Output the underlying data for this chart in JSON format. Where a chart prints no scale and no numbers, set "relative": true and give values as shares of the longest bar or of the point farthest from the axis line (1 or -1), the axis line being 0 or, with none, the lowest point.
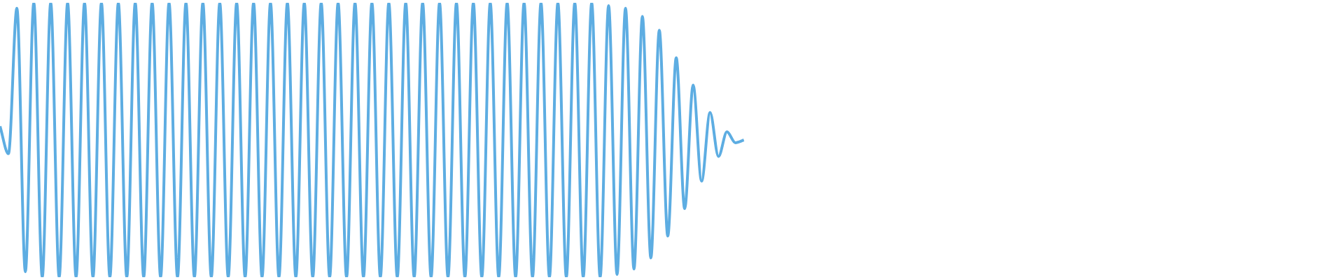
{
  "chart_data": {
    "type": "line",
    "relative": true,
    "marker": "none",
    "line_style": "solid",
    "categories": [
      null,
      null,
      null,
      null,
      null,
      null,
      null,
      null,
      null,
      null,
      null,
      null,
      null,
      null,
      null,
      null,
      null,
      null,
      null,
      null,
      null,
      null,
      null,
      null,
      null,
      null,
      null,
      null,
      null,
      null,
      null,
      null,
      null,
      null,
      null,
      null,
      null,
      null,
      null,
      null,
      null,
      null,
      null,
      null,
      null,
      null,
      null,
      null,
      null,
      null,
      null,
      null,
      null,
      null,
      null,
      null,
      null,
      null,
      null,
      null,
      null,
      null,
      null,
      null,
      null,
      null,
      null,
      null,
      null,
      null,
      null,
      null,
      null,
      null,
      null,
      null,
      null,
      null,
      null,
      null,
      null,
      null,
      null,
      null,
      null,
      null,
      null,
      null,
      null,
      null,
      null,
      null,
      null,
      null,
      null,
      null,
      null,
      null,
      null,
      null,
      null,
      null,
      null,
      null,
      null,
      null,
      null,
      null,
      null,
      null,
      null,
      null,
      null,
      null,
      null,
      null,
      null,
      null,
      null,
      null,
      null,
      null,
      null,
      null,
      null,
      null,
      null,
      null,
      null,
      null,
      null,
      null,
      null,
      null,
      null,
      null,
      null,
      null,
      null,
      null,
      null,
      null,
      null,
      null,
      null,
      null,
      null,
      null,
      null,
      null,
      null,
      null,
      null,
      null,
      null,
      null,
      null,
      null,
      null,
      null
    ],
    "series": [
      {
        "color": "#5dade2",
        "values": [
          0.55,
          0.45,
          0.98,
          0.02,
          1,
          0,
          1,
          0,
          1,
          0,
          1,
          0,
          1,
          0,
          1,
          0,
          1,
          0,
          1,
          0,
          1,
          0,
          1,
          0,
          1,
          0,
          1,
          0,
          1,
          0,
          1,
          0,
          1,
          0,
          1,
          0,
          1,
          0,
          1,
          0,
          1,
          0,
          1,
          0,
          1,
          0,
          1,
          0,
          1,
          0,
          1,
          0,
          1,
          0,
          1,
          0,
          1,
          0,
          1,
          0,
          1,
          0,
          1,
          0,
          1,
          0,
          1,
          0,
          1,
          0,
          1,
          0,
          0.99,
          0.01,
          0.98,
          0.03,
          0.95,
          0.07,
          0.9,
          0.15,
          0.8,
          0.25,
          0.7,
          0.35,
          0.6,
          0.44,
          0.53,
          0.49,
          0.5,
          null,
          null,
          null,
          null,
          null,
          null,
          null,
          null,
          null,
          null,
          null,
          null,
          null,
          null,
          null,
          null,
          null,
          null,
          null,
          null,
          null,
          null,
          null,
          null,
          null,
          null,
          null,
          null,
          null,
          null,
          null,
          null,
          null,
          null,
          null,
          null,
          null,
          null,
          null,
          null,
          null,
          null,
          null,
          null,
          null,
          null,
          null,
          null,
          null,
          null,
          null,
          null,
          null,
          null,
          null,
          null,
          null,
          null,
          null,
          null,
          null,
          null,
          null,
          null,
          null,
          null,
          null,
          null,
          null,
          null,
          null
        ]
      }
    ]
  }
}
